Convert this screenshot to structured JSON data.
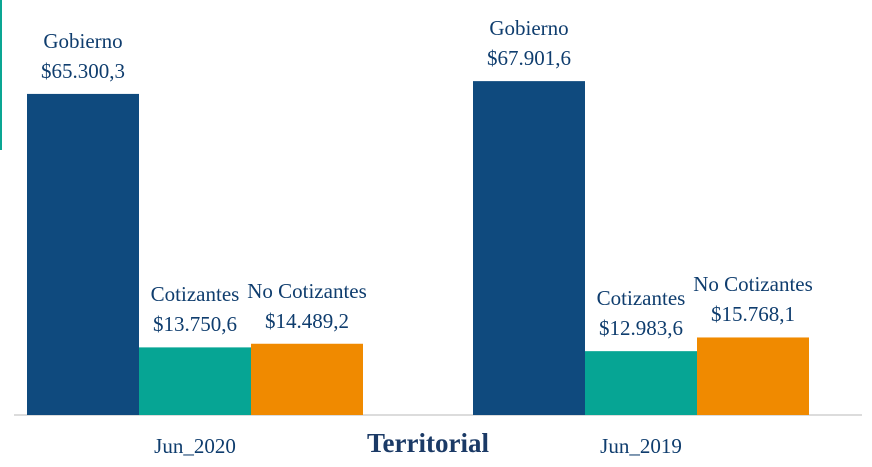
{
  "chart_data": {
    "type": "bar",
    "xlabel": "Territorial",
    "categories": [
      "Jun_2020",
      "Jun_2019"
    ],
    "series": [
      {
        "name": "Gobierno",
        "color": "#0f4a7e",
        "values": [
          65300.3,
          67901.6
        ],
        "value_labels": [
          "$65.300,3",
          "$67.901,6"
        ]
      },
      {
        "name": "Cotizantes",
        "color": "#06a594",
        "values": [
          13750.6,
          12983.6
        ],
        "value_labels": [
          "$13.750,6",
          "$12.983,6"
        ]
      },
      {
        "name": "No Cotizantes",
        "color": "#f08a00",
        "values": [
          14489.2,
          15768.1
        ],
        "value_labels": [
          "$14.489,2",
          "$15.768,1"
        ]
      }
    ],
    "ylim": [
      0,
      84400
    ]
  }
}
